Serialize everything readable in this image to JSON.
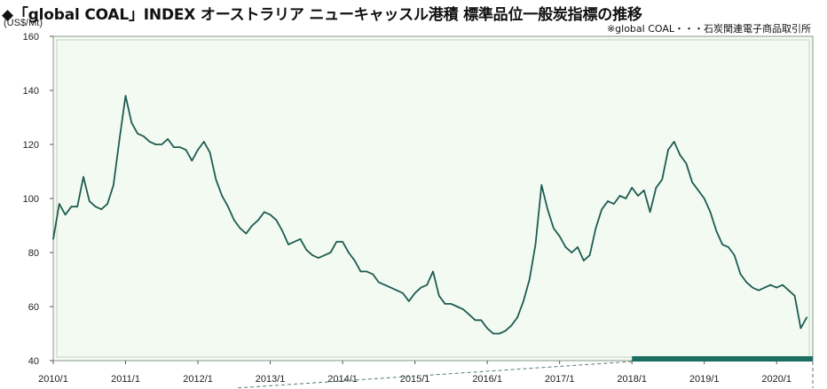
{
  "title": "◆「global COAL」INDEX オーストラリア ニューキャッスル港積 標準品位一般炭指標の推移",
  "subtitle": "※global COAL・・・石炭関連電子商品取引所",
  "colors": {
    "line": "#1d5c52",
    "plot_bg": "#f3faf2",
    "frame": "#8a9a8a",
    "band": "#1d6e62"
  },
  "chart_data": {
    "type": "line",
    "unit": "(US$/Mt)",
    "ylim": [
      40,
      160
    ],
    "yticks": [
      "40",
      "60",
      "80",
      "100",
      "120",
      "140",
      "160"
    ],
    "xticks": [
      "2010/1",
      "2011/1",
      "2012/1",
      "2013/1",
      "2014/1",
      "2015/1",
      "2016/1",
      "2017/1",
      "2018/1",
      "2019/1",
      "2020/1"
    ],
    "series": [
      {
        "x": [
          "2010/01",
          "2010/02",
          "2010/03",
          "2010/04",
          "2010/05",
          "2010/06",
          "2010/07",
          "2010/08",
          "2010/09",
          "2010/10",
          "2010/11",
          "2010/12",
          "2011/01",
          "2011/02",
          "2011/03",
          "2011/04",
          "2011/05",
          "2011/06",
          "2011/07",
          "2011/08",
          "2011/09",
          "2011/10",
          "2011/11",
          "2011/12",
          "2012/01",
          "2012/02",
          "2012/03",
          "2012/04",
          "2012/05",
          "2012/06",
          "2012/07",
          "2012/08",
          "2012/09",
          "2012/10",
          "2012/11",
          "2012/12",
          "2013/01",
          "2013/02",
          "2013/03",
          "2013/04",
          "2013/05",
          "2013/06",
          "2013/07",
          "2013/08",
          "2013/09",
          "2013/10",
          "2013/11",
          "2013/12",
          "2014/01",
          "2014/02",
          "2014/03",
          "2014/04",
          "2014/05",
          "2014/06",
          "2014/07",
          "2014/08",
          "2014/09",
          "2014/10",
          "2014/11",
          "2014/12",
          "2015/01",
          "2015/02",
          "2015/03",
          "2015/04",
          "2015/05",
          "2015/06",
          "2015/07",
          "2015/08",
          "2015/09",
          "2015/10",
          "2015/11",
          "2015/12",
          "2016/01",
          "2016/02",
          "2016/03",
          "2016/04",
          "2016/05",
          "2016/06",
          "2016/07",
          "2016/08",
          "2016/09",
          "2016/10",
          "2016/11",
          "2016/12",
          "2017/01",
          "2017/02",
          "2017/03",
          "2017/04",
          "2017/05",
          "2017/06",
          "2017/07",
          "2017/08",
          "2017/09",
          "2017/10",
          "2017/11",
          "2017/12",
          "2018/01",
          "2018/02",
          "2018/03",
          "2018/04",
          "2018/05",
          "2018/06",
          "2018/07",
          "2018/08",
          "2018/09",
          "2018/10",
          "2018/11",
          "2018/12",
          "2019/01",
          "2019/02",
          "2019/03",
          "2019/04",
          "2019/05",
          "2019/06",
          "2019/07",
          "2019/08",
          "2019/09",
          "2019/10",
          "2019/11",
          "2019/12",
          "2020/01",
          "2020/02",
          "2020/03",
          "2020/04",
          "2020/05",
          "2020/06"
        ],
        "values": [
          85,
          98,
          94,
          97,
          97,
          108,
          99,
          97,
          96,
          98,
          105,
          122,
          138,
          128,
          124,
          123,
          121,
          120,
          120,
          122,
          119,
          119,
          118,
          114,
          118,
          121,
          117,
          107,
          101,
          97,
          92,
          89,
          87,
          90,
          92,
          95,
          94,
          92,
          88,
          83,
          84,
          85,
          81,
          79,
          78,
          79,
          80,
          84,
          84,
          80,
          77,
          73,
          73,
          72,
          69,
          68,
          67,
          66,
          65,
          62,
          65,
          67,
          68,
          73,
          64,
          61,
          61,
          60,
          59,
          57,
          55,
          55,
          52,
          50,
          50,
          51,
          53,
          56,
          62,
          70,
          83,
          105,
          96,
          89,
          86,
          82,
          80,
          82,
          77,
          79,
          89,
          96,
          99,
          98,
          101,
          100,
          104,
          101,
          103,
          95,
          104,
          107,
          118,
          121,
          116,
          113,
          106,
          103,
          100,
          95,
          88,
          83,
          82,
          79,
          72,
          69,
          67,
          66,
          67,
          68,
          67,
          68,
          66,
          64,
          52,
          56
        ]
      }
    ]
  }
}
